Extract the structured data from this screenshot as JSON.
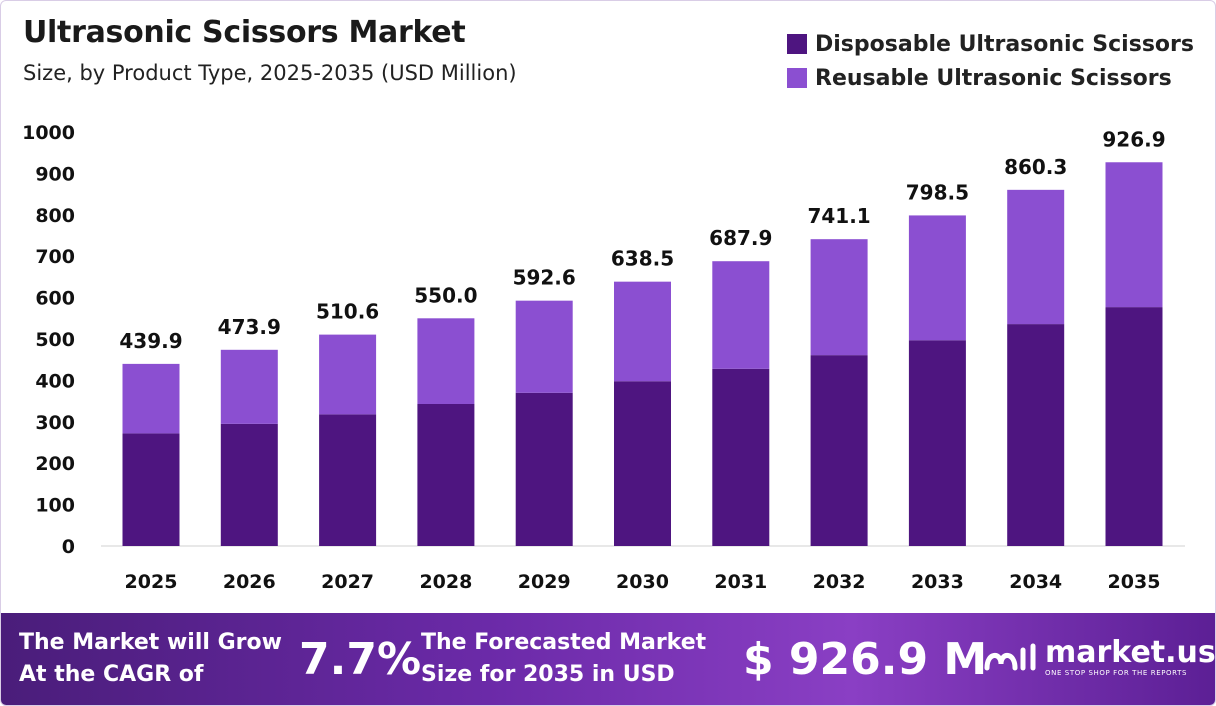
{
  "header": {
    "title": "Ultrasonic Scissors Market",
    "subtitle": "Size, by Product Type, 2025-2035 (USD Million)"
  },
  "legend": [
    {
      "label": "Disposable Ultrasonic Scissors",
      "color": "#4e1580"
    },
    {
      "label": "Reusable Ultrasonic Scissors",
      "color": "#8b4fd1"
    }
  ],
  "chart_data": {
    "type": "bar",
    "stacked": true,
    "categories": [
      "2025",
      "2026",
      "2027",
      "2028",
      "2029",
      "2030",
      "2031",
      "2032",
      "2033",
      "2034",
      "2035"
    ],
    "series": [
      {
        "name": "Disposable Ultrasonic Scissors",
        "color": "#4e1580",
        "values": [
          272,
          295,
          318,
          343,
          370,
          398,
          428,
          461,
          497,
          536,
          577
        ]
      },
      {
        "name": "Reusable Ultrasonic Scissors",
        "color": "#8b4fd1",
        "values": [
          167.9,
          178.9,
          192.6,
          207.0,
          222.6,
          240.5,
          259.9,
          280.1,
          301.5,
          324.3,
          349.9
        ]
      }
    ],
    "totals": [
      "439.9",
      "473.9",
      "510.6",
      "550.0",
      "592.6",
      "638.5",
      "687.9",
      "741.1",
      "798.5",
      "860.3",
      "926.9"
    ],
    "yticks": [
      "0",
      "100",
      "200",
      "300",
      "400",
      "500",
      "600",
      "700",
      "800",
      "900",
      "1000"
    ],
    "ylim": [
      0,
      1000
    ],
    "grid": false,
    "legend_position": "top-right"
  },
  "footer": {
    "cagr_label_line1": "The Market will Grow",
    "cagr_label_line2": "At the CAGR of",
    "cagr_value": "7.7%",
    "forecast_label_line1": "The Forecasted Market",
    "forecast_label_line2": "Size for 2035 in USD",
    "forecast_value": "$ 926.9 M",
    "brand_name": "market.us",
    "brand_tagline": "ONE STOP SHOP FOR THE REPORTS"
  }
}
